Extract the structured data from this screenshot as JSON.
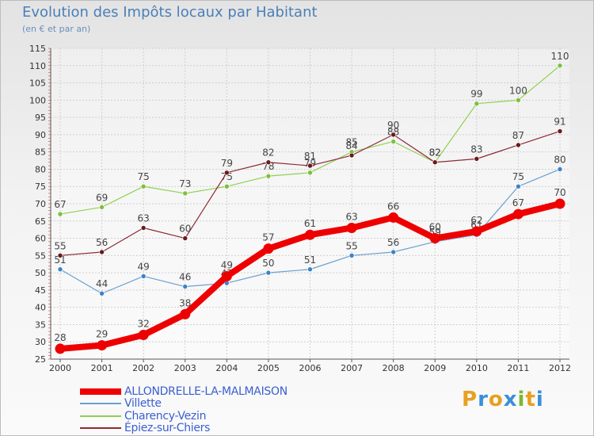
{
  "title": "Evolution des Impôts locaux par Habitant",
  "subtitle": "(en € et par an)",
  "logo": {
    "letters": [
      "P",
      "r",
      "o",
      "x",
      "i",
      "t",
      "i"
    ],
    "colors": [
      "#e8a020",
      "#3a8fd8",
      "#e8a020",
      "#3a8fd8",
      "#7ab830",
      "#e8a020",
      "#3a8fd8"
    ]
  },
  "chart_data": {
    "type": "line",
    "categories": [
      "2000",
      "2001",
      "2002",
      "2003",
      "2004",
      "2005",
      "2006",
      "2007",
      "2008",
      "2009",
      "2010",
      "2011",
      "2012"
    ],
    "ylim": [
      25,
      115
    ],
    "yticks": [
      "25",
      "30",
      "35",
      "40",
      "45",
      "50",
      "55",
      "60",
      "65",
      "70",
      "75",
      "80",
      "85",
      "90",
      "95",
      "100",
      "105",
      "110",
      "115"
    ],
    "grid": true,
    "legend_position": "bottom-left",
    "series": [
      {
        "name": "Charency-Vezin",
        "color": "#90d050",
        "marker": "#7cc03a",
        "values": [
          67,
          69,
          75,
          73,
          75,
          78,
          79,
          85,
          88,
          82,
          99,
          100,
          110
        ],
        "labels": [
          "67",
          "69",
          "75",
          "73",
          "75",
          "78",
          "79",
          "85",
          "88",
          "82",
          "99",
          "100",
          "110"
        ]
      },
      {
        "name": "Villette",
        "color": "#6b9fcf",
        "marker": "#3c83c8",
        "values": [
          51,
          44,
          49,
          46,
          47,
          50,
          51,
          55,
          56,
          59,
          61,
          75,
          80
        ],
        "labels": [
          "51",
          "44",
          "49",
          "46",
          "47",
          "50",
          "51",
          "55",
          "56",
          "59",
          "61",
          "75",
          "80"
        ]
      },
      {
        "name": "Épiez-sur-Chiers",
        "color": "#8b2a35",
        "marker": "#6a1a1a",
        "values": [
          55,
          56,
          63,
          60,
          79,
          82,
          81,
          84,
          90,
          82,
          83,
          87,
          91
        ],
        "labels": [
          "55",
          "56",
          "63",
          "60",
          "79",
          "82",
          "81",
          "84",
          "90",
          "82",
          "83",
          "87",
          "91"
        ]
      },
      {
        "name": "ALLONDRELLE-LA-MALMAISON",
        "color": "#ee0000",
        "marker": "#ee0000",
        "values": [
          28,
          29,
          32,
          38,
          49,
          57,
          61,
          63,
          66,
          60,
          62,
          67,
          70
        ],
        "labels": [
          "28",
          "29",
          "32",
          "38",
          "49",
          "57",
          "61",
          "63",
          "66",
          "60",
          "62",
          "67",
          "70"
        ]
      }
    ],
    "legend": [
      {
        "name": "ALLONDRELLE-LA-MALMAISON",
        "color": "#ee0000",
        "thick": true
      },
      {
        "name": "Villette",
        "color": "#6b9fcf",
        "thick": false
      },
      {
        "name": "Charency-Vezin",
        "color": "#90d050",
        "thick": false
      },
      {
        "name": "Épiez-sur-Chiers",
        "color": "#8b2a35",
        "thick": false
      }
    ]
  }
}
